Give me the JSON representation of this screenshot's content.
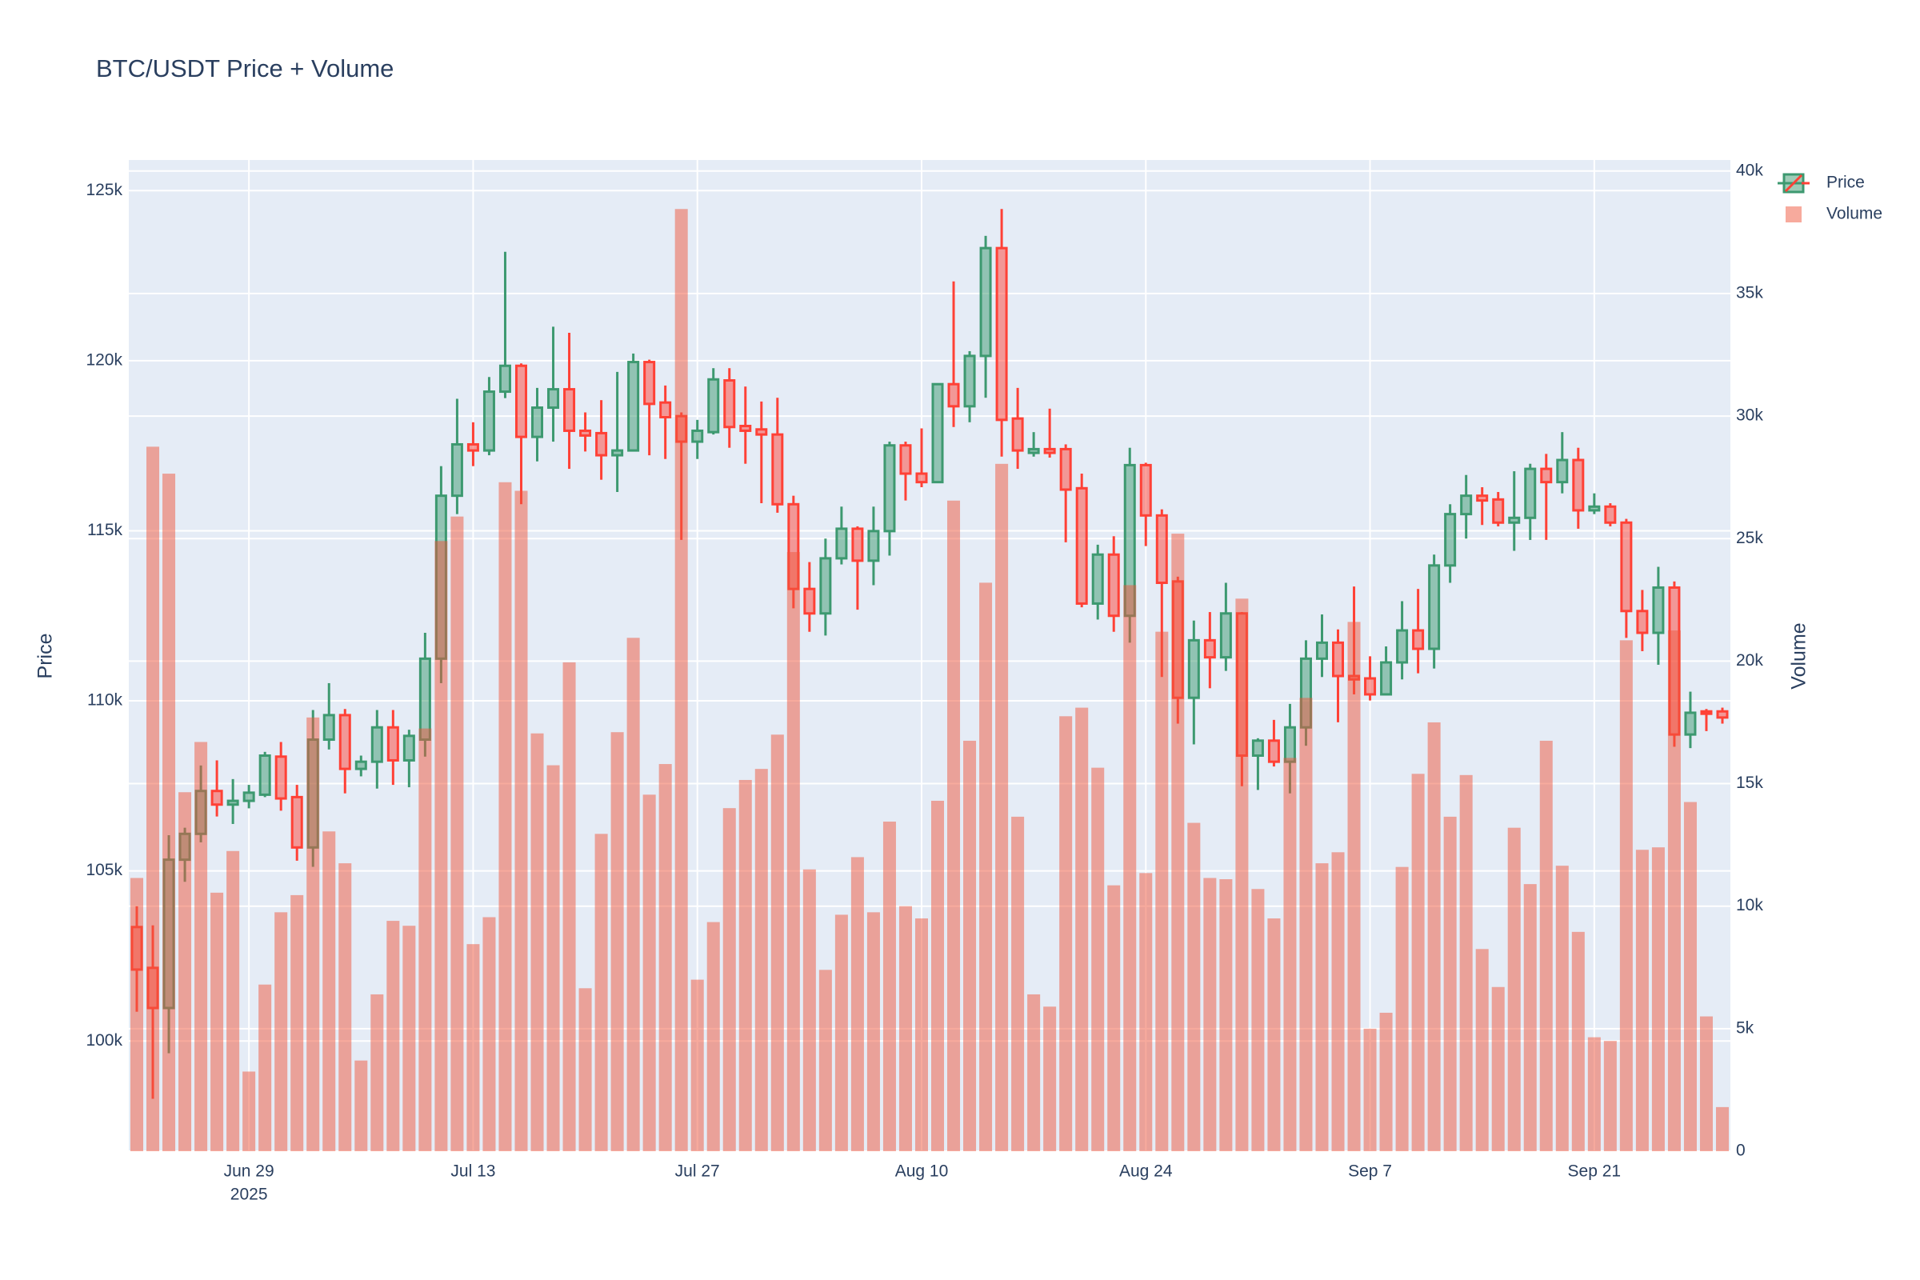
{
  "chart_data": {
    "type": "candlestick",
    "title": "BTC/USDT Price + Volume",
    "x": [
      "2025-06-22",
      "2025-06-23",
      "2025-06-24",
      "2025-06-25",
      "2025-06-26",
      "2025-06-27",
      "2025-06-28",
      "2025-06-29",
      "2025-06-30",
      "2025-07-01",
      "2025-07-02",
      "2025-07-03",
      "2025-07-04",
      "2025-07-05",
      "2025-07-06",
      "2025-07-07",
      "2025-07-08",
      "2025-07-09",
      "2025-07-10",
      "2025-07-11",
      "2025-07-12",
      "2025-07-13",
      "2025-07-14",
      "2025-07-15",
      "2025-07-16",
      "2025-07-17",
      "2025-07-18",
      "2025-07-19",
      "2025-07-20",
      "2025-07-21",
      "2025-07-22",
      "2025-07-23",
      "2025-07-24",
      "2025-07-25",
      "2025-07-26",
      "2025-07-27",
      "2025-07-28",
      "2025-07-29",
      "2025-07-30",
      "2025-07-31",
      "2025-08-01",
      "2025-08-02",
      "2025-08-03",
      "2025-08-04",
      "2025-08-05",
      "2025-08-06",
      "2025-08-07",
      "2025-08-08",
      "2025-08-09",
      "2025-08-10",
      "2025-08-11",
      "2025-08-12",
      "2025-08-13",
      "2025-08-14",
      "2025-08-15",
      "2025-08-16",
      "2025-08-17",
      "2025-08-18",
      "2025-08-19",
      "2025-08-20",
      "2025-08-21",
      "2025-08-22",
      "2025-08-23",
      "2025-08-24",
      "2025-08-25",
      "2025-08-26",
      "2025-08-27",
      "2025-08-28",
      "2025-08-29",
      "2025-08-30",
      "2025-08-31",
      "2025-09-01",
      "2025-09-02",
      "2025-09-03",
      "2025-09-04",
      "2025-09-05",
      "2025-09-06",
      "2025-09-07",
      "2025-09-08",
      "2025-09-09",
      "2025-09-10",
      "2025-09-11",
      "2025-09-12",
      "2025-09-13",
      "2025-09-14",
      "2025-09-15",
      "2025-09-16",
      "2025-09-17",
      "2025-09-18",
      "2025-09-19",
      "2025-09-20",
      "2025-09-21",
      "2025-09-22",
      "2025-09-23",
      "2025-09-24",
      "2025-09-25",
      "2025-09-26",
      "2025-09-27",
      "2025-09-28",
      "2025-09-29"
    ],
    "series": [
      {
        "name": "Price",
        "type": "candlestick",
        "increasing_color": "#3d9970",
        "decreasing_color": "#ff4136",
        "open": [
          103350,
          102150,
          100970,
          105330,
          106090,
          107350,
          106950,
          107060,
          107240,
          108360,
          107170,
          105690,
          108860,
          109580,
          108000,
          108210,
          109220,
          108250,
          108860,
          111240,
          116030,
          117540,
          117360,
          119090,
          119850,
          117760,
          118620,
          119160,
          117940,
          117870,
          117220,
          117360,
          119960,
          118770,
          118370,
          117620,
          117900,
          119420,
          118080,
          117980,
          117830,
          115780,
          113290,
          112570,
          114190,
          115060,
          114120,
          114990,
          117510,
          116680,
          116430,
          119310,
          118660,
          120140,
          123310,
          118300,
          117290,
          117400,
          117400,
          116250,
          112860,
          114300,
          112500,
          116930,
          115450,
          113510,
          110090,
          111780,
          111280,
          112570,
          108390,
          108830,
          108210,
          109220,
          111240,
          111710,
          110730,
          110660,
          110190,
          111130,
          112070,
          111530,
          113980,
          115490,
          116030,
          115920,
          115240,
          115380,
          116820,
          116430,
          117080,
          115600,
          115710,
          115240,
          112640,
          112000,
          113330,
          109010,
          109690,
          109690
        ],
        "high": [
          103960,
          103400,
          106050,
          106270,
          108100,
          108250,
          107700,
          107530,
          108500,
          108790,
          107530,
          109730,
          110520,
          109760,
          108390,
          109730,
          109730,
          109150,
          112000,
          116900,
          118880,
          118190,
          119520,
          123200,
          119920,
          119200,
          121000,
          120820,
          118480,
          118840,
          119670,
          120210,
          120030,
          119270,
          118480,
          118260,
          119780,
          119780,
          119240,
          118800,
          118910,
          116030,
          114080,
          114770,
          115710,
          115130,
          115710,
          117620,
          117620,
          118010,
          119310,
          122330,
          120280,
          123670,
          124460,
          119200,
          117900,
          118590,
          117540,
          116680,
          114590,
          114840,
          117440,
          117000,
          115630,
          113650,
          112360,
          112610,
          113470,
          112610,
          108900,
          109440,
          109910,
          111780,
          112540,
          112100,
          113360,
          111310,
          111600,
          112930,
          113290,
          114300,
          115780,
          116640,
          116280,
          116140,
          116750,
          116970,
          117260,
          117900,
          117440,
          116100,
          115810,
          115350,
          113260,
          113940,
          113510,
          110270,
          109760,
          109800
        ],
        "low": [
          100860,
          98300,
          99640,
          104680,
          105840,
          106600,
          106380,
          106840,
          107170,
          106770,
          105300,
          105120,
          108570,
          107280,
          107780,
          107420,
          107530,
          107460,
          108360,
          110520,
          115490,
          116900,
          117220,
          118900,
          115780,
          117040,
          117620,
          116820,
          117330,
          116500,
          116140,
          117330,
          117220,
          117110,
          114730,
          117110,
          117830,
          117440,
          116970,
          115810,
          115530,
          112720,
          112030,
          111920,
          114010,
          112680,
          113400,
          114270,
          115890,
          116280,
          116430,
          118050,
          118190,
          118910,
          117180,
          116820,
          117180,
          117150,
          114660,
          112750,
          112390,
          112030,
          111710,
          114550,
          110700,
          109330,
          108720,
          110370,
          110880,
          107490,
          107380,
          108070,
          107280,
          108680,
          110700,
          109370,
          110190,
          110010,
          110190,
          110630,
          110810,
          110950,
          113470,
          114770,
          115170,
          115130,
          114410,
          114730,
          114730,
          116100,
          115060,
          115490,
          115130,
          111850,
          111460,
          111060,
          108650,
          108610,
          109110,
          109330
        ],
        "close": [
          102100,
          100970,
          105330,
          106090,
          107350,
          106950,
          107060,
          107300,
          108390,
          107130,
          105690,
          108860,
          109580,
          108000,
          108210,
          109220,
          108250,
          108970,
          111240,
          116030,
          117540,
          117360,
          119090,
          119850,
          117760,
          118620,
          119160,
          117940,
          117800,
          117220,
          117360,
          119960,
          118730,
          118340,
          117620,
          117940,
          119450,
          118050,
          117940,
          117830,
          115780,
          113290,
          112570,
          114190,
          115060,
          114120,
          114990,
          117510,
          116680,
          116430,
          119310,
          118660,
          120140,
          123310,
          118260,
          117360,
          117400,
          117290,
          116210,
          112860,
          114300,
          112500,
          116930,
          115450,
          113470,
          110090,
          111780,
          111280,
          112570,
          108390,
          108830,
          108210,
          109220,
          111240,
          111710,
          110730,
          110630,
          110190,
          111130,
          112070,
          111530,
          113980,
          115490,
          116030,
          115890,
          115240,
          115380,
          116820,
          116430,
          117080,
          115600,
          115710,
          115240,
          112640,
          112000,
          113330,
          109010,
          109650,
          109620,
          109510
        ]
      },
      {
        "name": "Volume",
        "type": "bar",
        "axis": "y2",
        "color": "#ef553b",
        "opacity": 0.5,
        "values": [
          11150,
          28750,
          27650,
          14650,
          16700,
          10550,
          12250,
          3250,
          6800,
          9750,
          10450,
          17700,
          13050,
          11750,
          3700,
          6400,
          9400,
          9200,
          17250,
          24900,
          25900,
          8450,
          9550,
          27300,
          26950,
          17050,
          15750,
          19950,
          6650,
          12950,
          17100,
          20950,
          14550,
          15800,
          38450,
          7000,
          9350,
          14000,
          15150,
          15600,
          17000,
          24450,
          11500,
          7400,
          9650,
          12000,
          9750,
          13450,
          10000,
          9500,
          14300,
          26550,
          16750,
          23200,
          28050,
          13650,
          6400,
          5900,
          17750,
          18100,
          15650,
          10850,
          23100,
          11350,
          21200,
          25200,
          13400,
          11150,
          11100,
          22550,
          10700,
          9500,
          16050,
          18500,
          11750,
          12200,
          21600,
          5000,
          5650,
          11600,
          15400,
          17500,
          13650,
          15350,
          8250,
          6700,
          13200,
          10900,
          16750,
          11650,
          8950,
          4650,
          4500,
          20850,
          12300,
          12400,
          21250,
          14250,
          5500,
          1800
        ]
      }
    ],
    "xlim": [
      "2025-06-21 12:00",
      "2025-09-29 12:00"
    ],
    "xticks": [
      {
        "value": "2025-06-29",
        "label": "Jun 29",
        "year_label": "2025"
      },
      {
        "value": "2025-07-13",
        "label": "Jul 13"
      },
      {
        "value": "2025-07-27",
        "label": "Jul 27"
      },
      {
        "value": "2025-08-10",
        "label": "Aug 10"
      },
      {
        "value": "2025-08-24",
        "label": "Aug 24"
      },
      {
        "value": "2025-09-07",
        "label": "Sep 7"
      },
      {
        "value": "2025-09-21",
        "label": "Sep 21"
      }
    ],
    "ylabel": "Price",
    "ylim": [
      96760,
      125900
    ],
    "yticks": [
      {
        "value": 100000,
        "label": "100k"
      },
      {
        "value": 105000,
        "label": "105k"
      },
      {
        "value": 110000,
        "label": "110k"
      },
      {
        "value": 115000,
        "label": "115k"
      },
      {
        "value": 120000,
        "label": "120k"
      },
      {
        "value": 125000,
        "label": "125k"
      }
    ],
    "y2label": "Volume",
    "y2lim": [
      0,
      40450
    ],
    "y2ticks": [
      0,
      {
        "value": 5000,
        "label": "5k"
      },
      {
        "value": 10000,
        "label": "10k"
      },
      {
        "value": 15000,
        "label": "15k"
      },
      {
        "value": 20000,
        "label": "20k"
      },
      {
        "value": 25000,
        "label": "25k"
      },
      {
        "value": 30000,
        "label": "30k"
      },
      {
        "value": 35000,
        "label": "35k"
      },
      {
        "value": 40000,
        "label": "40k"
      }
    ],
    "grid": true,
    "legend": "top-right-outside",
    "plot_background": "#e5ecf6"
  }
}
